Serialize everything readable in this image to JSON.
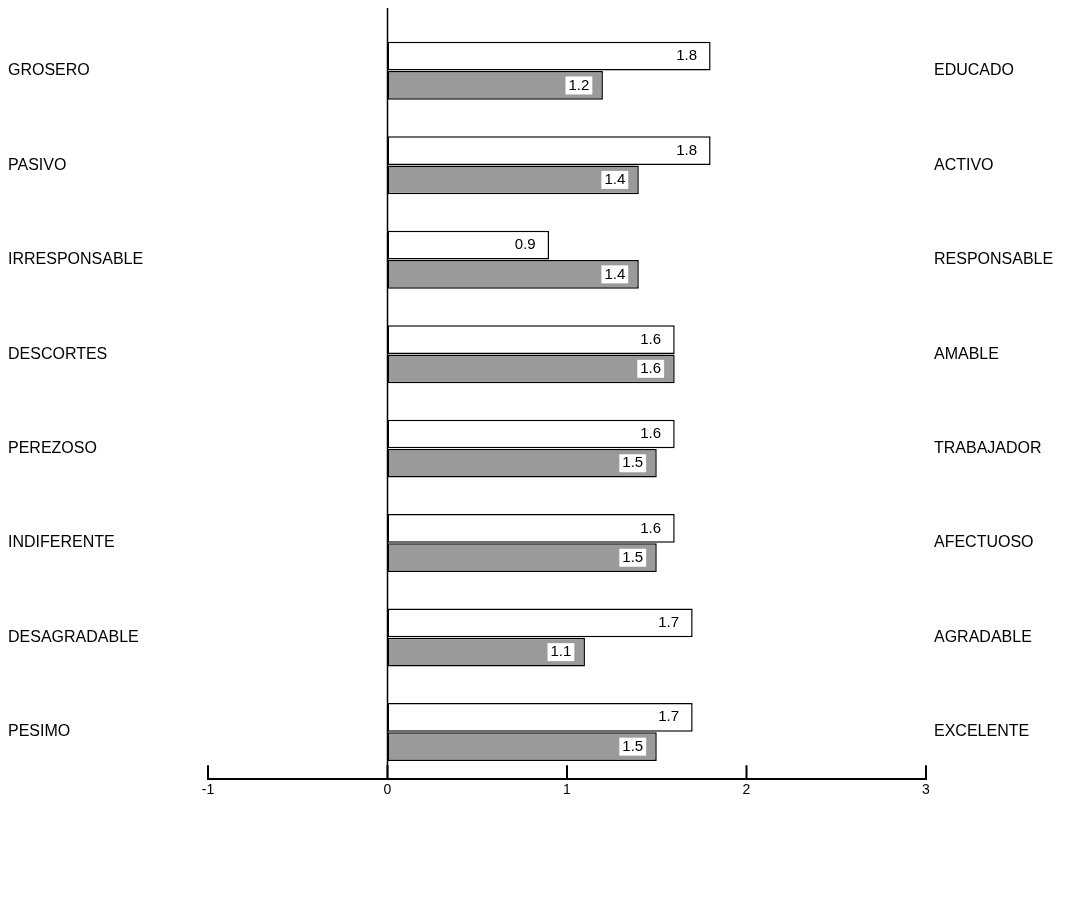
{
  "chart_data": {
    "type": "bar",
    "orientation": "horizontal",
    "categories": [
      "GROSERO",
      "PASIVO",
      "IRRESPONSABLE",
      "DESCORTES",
      "PEREZOSO",
      "INDIFERENTE",
      "DESAGRADABLE",
      "PESIMO"
    ],
    "y2_categories": [
      "EDUCADO",
      "ACTIVO",
      "RESPONSABLE",
      "AMABLE",
      "TRABAJADOR",
      "AFECTUOSO",
      "AGRADABLE",
      "EXCELENTE"
    ],
    "series": [
      {
        "color": "#ffffff",
        "values": [
          1.8,
          1.8,
          0.9,
          1.6,
          1.6,
          1.6,
          1.7,
          1.7
        ]
      },
      {
        "color": "#9a9a9a",
        "values": [
          1.2,
          1.4,
          1.4,
          1.6,
          1.5,
          1.5,
          1.1,
          1.5
        ]
      }
    ],
    "ref_lines": [
      {
        "axis": "x",
        "value": 0
      }
    ],
    "xlim": [
      -1,
      3
    ],
    "xticks": [
      -1,
      0,
      1,
      2,
      3
    ],
    "grid": false,
    "legend": false,
    "data_labels": true
  }
}
